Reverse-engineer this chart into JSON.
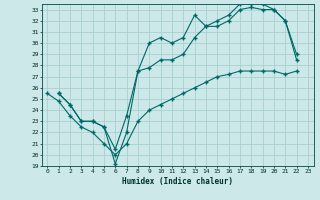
{
  "title": "",
  "xlabel": "Humidex (Indice chaleur)",
  "bg_color": "#cce8e8",
  "grid_color": "#a8d0d0",
  "line_color": "#006868",
  "xlim": [
    -0.5,
    23.5
  ],
  "ylim": [
    19,
    33.5
  ],
  "yticks": [
    19,
    20,
    21,
    22,
    23,
    24,
    25,
    26,
    27,
    28,
    29,
    30,
    31,
    32,
    33
  ],
  "xticks": [
    0,
    1,
    2,
    3,
    4,
    5,
    6,
    7,
    8,
    9,
    10,
    11,
    12,
    13,
    14,
    15,
    16,
    17,
    18,
    19,
    20,
    21,
    22,
    23
  ],
  "line1_x": [
    1,
    2,
    3,
    4,
    5,
    6,
    7,
    8,
    9,
    10,
    11,
    12,
    13,
    14,
    15,
    16,
    17,
    18,
    19,
    20,
    21,
    22
  ],
  "line1_y": [
    25.5,
    24.5,
    23.0,
    23.0,
    22.5,
    19.2,
    22.0,
    27.5,
    30.0,
    30.5,
    30.0,
    30.5,
    32.5,
    31.5,
    31.5,
    32.0,
    33.0,
    33.2,
    33.0,
    33.0,
    32.0,
    28.5
  ],
  "line2_x": [
    1,
    2,
    3,
    4,
    5,
    6,
    7,
    8,
    9,
    10,
    11,
    12,
    13,
    14,
    15,
    16,
    17,
    18,
    19,
    20,
    21,
    22
  ],
  "line2_y": [
    25.5,
    24.5,
    23.0,
    23.0,
    22.5,
    20.5,
    23.5,
    27.5,
    27.8,
    28.5,
    28.5,
    29.0,
    30.5,
    31.5,
    32.0,
    32.5,
    33.5,
    33.5,
    33.5,
    33.0,
    32.0,
    29.0
  ],
  "line3_x": [
    0,
    1,
    2,
    3,
    4,
    5,
    6,
    7,
    8,
    9,
    10,
    11,
    12,
    13,
    14,
    15,
    16,
    17,
    18,
    19,
    20,
    21,
    22
  ],
  "line3_y": [
    25.5,
    24.8,
    23.5,
    22.5,
    22.0,
    21.0,
    20.0,
    21.0,
    23.0,
    24.0,
    24.5,
    25.0,
    25.5,
    26.0,
    26.5,
    27.0,
    27.2,
    27.5,
    27.5,
    27.5,
    27.5,
    27.2,
    27.5
  ]
}
